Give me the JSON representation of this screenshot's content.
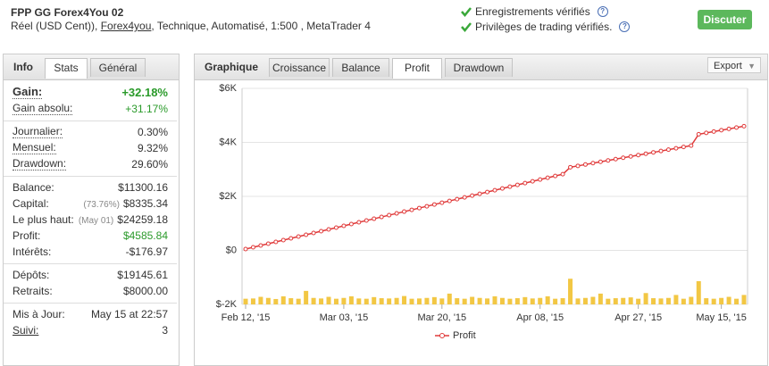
{
  "header": {
    "title": "FPP GG Forex4You 02",
    "subtitle_prefix": "Réel (USD Cent)), ",
    "broker": "Forex4you",
    "subtitle_suffix": ", Technique, Automatisé, 1:500 , MetaTrader 4",
    "verifications": [
      "Enregistrements vérifiés",
      "Privilèges de trading vérifiés."
    ],
    "button": "Discuter"
  },
  "left_tabs": [
    "Info",
    "Stats",
    "Général"
  ],
  "stats": [
    [
      {
        "label": "Gain:",
        "value": "+32.18%",
        "color": "#2a9a2a"
      },
      {
        "label": "Gain absolu:",
        "value": "+31.17%",
        "color": "#2a9a2a"
      }
    ],
    [
      {
        "label": "Journalier:",
        "value": "0.30%"
      },
      {
        "label": "Mensuel:",
        "value": "9.32%"
      },
      {
        "label": "Drawdown:",
        "value": "29.60%"
      }
    ],
    [
      {
        "label": "Balance:",
        "value": "$11300.16"
      },
      {
        "label": "Capital:",
        "note": "(73.76%)",
        "value": "$8335.34"
      },
      {
        "label": "Le plus haut:",
        "note": "(May 01)",
        "value": "$24259.18"
      },
      {
        "label": "Profit:",
        "value": "$4585.84",
        "color": "#2a9a2a"
      },
      {
        "label": "Intérêts:",
        "value": "-$176.97"
      }
    ],
    [
      {
        "label": "Dépôts:",
        "value": "$19145.61"
      },
      {
        "label": "Retraits:",
        "value": "$8000.00"
      }
    ],
    [
      {
        "label": "Mis à Jour:",
        "value": "May 15 at 22:57"
      },
      {
        "label": "Suivi:",
        "value": "3"
      }
    ]
  ],
  "chart_tabs": {
    "label": "Graphique",
    "tabs": [
      "Croissance",
      "Balance",
      "Profit",
      "Drawdown"
    ],
    "active": 2,
    "export": "Export"
  },
  "chart_data": {
    "type": "line",
    "categories": [
      "Feb 12, '15",
      null,
      null,
      null,
      null,
      null,
      null,
      null,
      null,
      null,
      null,
      null,
      null,
      "Mar 03, '15",
      null,
      null,
      null,
      null,
      null,
      null,
      null,
      null,
      null,
      null,
      null,
      null,
      "Mar 20, '15",
      null,
      null,
      null,
      null,
      null,
      null,
      null,
      null,
      null,
      null,
      null,
      null,
      "Apr 08, '15",
      null,
      null,
      null,
      null,
      null,
      null,
      null,
      null,
      null,
      null,
      null,
      null,
      "Apr 27, '15",
      null,
      null,
      null,
      null,
      null,
      null,
      null,
      null,
      null,
      null,
      "May 15, '15",
      null,
      null,
      null
    ],
    "series": [
      {
        "name": "Profit",
        "color": "#e03a3a",
        "values": [
          50,
          116,
          182,
          248,
          314,
          380,
          446,
          512,
          578,
          644,
          710,
          776,
          842,
          908,
          974,
          1040,
          1106,
          1172,
          1238,
          1304,
          1370,
          1436,
          1502,
          1568,
          1634,
          1700,
          1766,
          1832,
          1898,
          1964,
          2030,
          2096,
          2162,
          2228,
          2294,
          2360,
          2426,
          2492,
          2558,
          2624,
          2690,
          2756,
          2822,
          3080,
          3130,
          3180,
          3230,
          3280,
          3330,
          3380,
          3430,
          3480,
          3530,
          3580,
          3630,
          3680,
          3730,
          3780,
          3830,
          3880,
          4300,
          4350,
          4400,
          4450,
          4500,
          4550,
          4600
        ]
      },
      {
        "type": "bar",
        "color": "#f2c744",
        "values": [
          -1790,
          -1780,
          -1720,
          -1760,
          -1800,
          -1700,
          -1770,
          -1790,
          -1500,
          -1760,
          -1780,
          -1720,
          -1790,
          -1760,
          -1700,
          -1780,
          -1790,
          -1730,
          -1770,
          -1780,
          -1760,
          -1690,
          -1790,
          -1780,
          -1760,
          -1730,
          -1780,
          -1600,
          -1770,
          -1790,
          -1720,
          -1760,
          -1780,
          -1700,
          -1760,
          -1790,
          -1770,
          -1730,
          -1780,
          -1760,
          -1700,
          -1790,
          -1770,
          -1050,
          -1780,
          -1760,
          -1720,
          -1600,
          -1790,
          -1770,
          -1760,
          -1740,
          -1790,
          -1580,
          -1770,
          -1780,
          -1760,
          -1650,
          -1790,
          -1720,
          -1140,
          -1770,
          -1790,
          -1760,
          -1720,
          -1790,
          -1650
        ]
      }
    ],
    "ylim": [
      -2000,
      6000
    ],
    "yticks": [
      {
        "value": 6000,
        "label": "$6K"
      },
      {
        "value": 4000,
        "label": "$4K"
      },
      {
        "value": 2000,
        "label": "$2K"
      },
      {
        "value": 0,
        "label": "$0"
      },
      {
        "value": -2000,
        "label": "$-2K"
      }
    ],
    "grid": true
  }
}
